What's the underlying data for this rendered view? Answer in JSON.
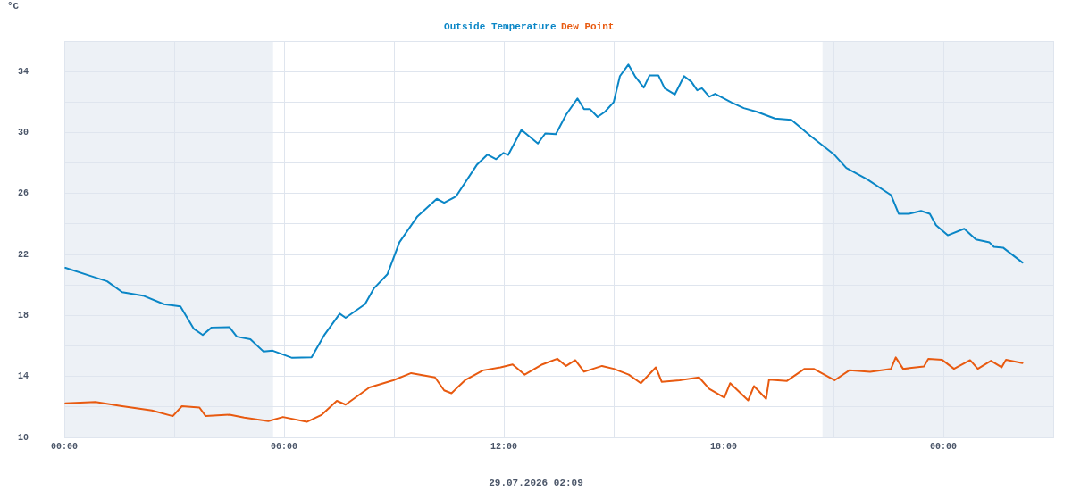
{
  "chart_data": {
    "type": "line",
    "ylabel": "°C",
    "legend": "top",
    "grid": true,
    "marker": "none",
    "line_style": "solid",
    "annotations": [
      "29.07.2026 02:09"
    ],
    "xlim": [
      0,
      27
    ],
    "ylim": [
      10,
      36
    ],
    "xticks": [
      {
        "value": 0,
        "label": "00:00"
      },
      {
        "value": 3,
        "label": null
      },
      {
        "value": 6,
        "label": "06:00"
      },
      {
        "value": 9,
        "label": null
      },
      {
        "value": 12,
        "label": "12:00"
      },
      {
        "value": 15,
        "label": null
      },
      {
        "value": 18,
        "label": "18:00"
      },
      {
        "value": 21,
        "label": null
      },
      {
        "value": 24,
        "label": "00:00"
      },
      {
        "value": 27,
        "label": null
      }
    ],
    "yticks": [
      10,
      {
        "value": 12,
        "label": null
      },
      14,
      {
        "value": 16,
        "label": null
      },
      18,
      {
        "value": 20,
        "label": null
      },
      22,
      {
        "value": 24,
        "label": null
      },
      26,
      {
        "value": 28,
        "label": null
      },
      30,
      {
        "value": 32,
        "label": null
      },
      34,
      {
        "value": 36,
        "label": null
      }
    ],
    "bands": [
      {
        "axis": "x",
        "from": 0,
        "to": 5.7,
        "color": "#edf1f6"
      },
      {
        "axis": "x",
        "from": 20.7,
        "to": 27,
        "color": "#edf1f6"
      }
    ],
    "series": [
      {
        "name": "Outside Temperature",
        "color": "#0a86c6",
        "x": [
          0.03,
          0.68,
          1.17,
          1.58,
          2.15,
          2.72,
          3.17,
          3.53,
          3.78,
          4.02,
          4.51,
          4.71,
          5.08,
          5.44,
          5.69,
          6.22,
          6.75,
          7.11,
          7.52,
          7.68,
          8.21,
          8.45,
          8.82,
          9.15,
          9.64,
          10.17,
          10.37,
          10.69,
          11.26,
          11.55,
          11.79,
          11.99,
          12.12,
          12.48,
          12.93,
          13.13,
          13.42,
          13.7,
          14.01,
          14.19,
          14.35,
          14.56,
          14.76,
          15.0,
          15.17,
          15.4,
          15.58,
          15.82,
          15.98,
          16.22,
          16.39,
          16.67,
          16.92,
          17.12,
          17.28,
          17.41,
          17.61,
          17.77,
          18.22,
          18.55,
          18.91,
          19.4,
          19.85,
          20.38,
          21.03,
          21.35,
          21.92,
          22.57,
          22.78,
          23.06,
          23.39,
          23.63,
          23.8,
          24.12,
          24.57,
          24.89,
          25.26,
          25.38,
          25.63,
          26.16
        ],
        "values": [
          21.13,
          20.62,
          20.24,
          19.53,
          19.3,
          18.74,
          18.6,
          17.14,
          16.72,
          17.21,
          17.23,
          16.61,
          16.44,
          15.63,
          15.69,
          15.22,
          15.25,
          16.76,
          18.12,
          17.85,
          18.74,
          19.77,
          20.7,
          22.8,
          24.5,
          25.65,
          25.4,
          25.8,
          27.87,
          28.55,
          28.25,
          28.66,
          28.53,
          30.17,
          29.28,
          29.94,
          29.9,
          31.17,
          32.24,
          31.54,
          31.54,
          31.02,
          31.36,
          32.0,
          33.7,
          34.46,
          33.7,
          32.95,
          33.75,
          33.75,
          32.9,
          32.5,
          33.7,
          33.33,
          32.77,
          32.9,
          32.35,
          32.54,
          31.97,
          31.6,
          31.36,
          30.92,
          30.83,
          29.76,
          28.53,
          27.68,
          26.93,
          25.9,
          24.67,
          24.67,
          24.86,
          24.67,
          23.92,
          23.26,
          23.69,
          22.98,
          22.79,
          22.5,
          22.45,
          21.47
        ]
      },
      {
        "name": "Dew Point",
        "color": "#e85a10",
        "x": [
          0.03,
          0.85,
          1.58,
          2.39,
          2.96,
          3.21,
          3.69,
          3.86,
          4.51,
          4.91,
          5.57,
          5.97,
          6.62,
          7.03,
          7.44,
          7.68,
          8.33,
          8.98,
          9.47,
          10.12,
          10.37,
          10.57,
          10.94,
          11.43,
          11.91,
          12.24,
          12.57,
          13.05,
          13.46,
          13.7,
          13.95,
          14.19,
          14.68,
          15.0,
          15.41,
          15.74,
          16.15,
          16.31,
          16.8,
          17.33,
          17.61,
          18.02,
          18.18,
          18.67,
          18.83,
          19.16,
          19.24,
          19.73,
          20.21,
          20.46,
          21.03,
          21.44,
          22.0,
          22.57,
          22.7,
          22.9,
          23.47,
          23.59,
          23.96,
          24.29,
          24.73,
          24.94,
          25.3,
          25.59,
          25.71,
          26.16
        ],
        "values": [
          12.24,
          12.33,
          12.05,
          11.77,
          11.4,
          12.05,
          11.96,
          11.4,
          11.49,
          11.3,
          11.07,
          11.34,
          11.02,
          11.49,
          12.4,
          12.15,
          13.28,
          13.75,
          14.22,
          13.94,
          13.09,
          12.9,
          13.75,
          14.4,
          14.6,
          14.79,
          14.12,
          14.79,
          15.16,
          14.69,
          15.07,
          14.31,
          14.69,
          14.5,
          14.12,
          13.56,
          14.6,
          13.65,
          13.75,
          13.94,
          13.18,
          12.62,
          13.56,
          12.43,
          13.37,
          12.53,
          13.79,
          13.71,
          14.5,
          14.5,
          13.75,
          14.41,
          14.31,
          14.5,
          15.25,
          14.5,
          14.65,
          15.16,
          15.1,
          14.5,
          15.07,
          14.5,
          15.03,
          14.6,
          15.1,
          14.88
        ]
      }
    ]
  }
}
